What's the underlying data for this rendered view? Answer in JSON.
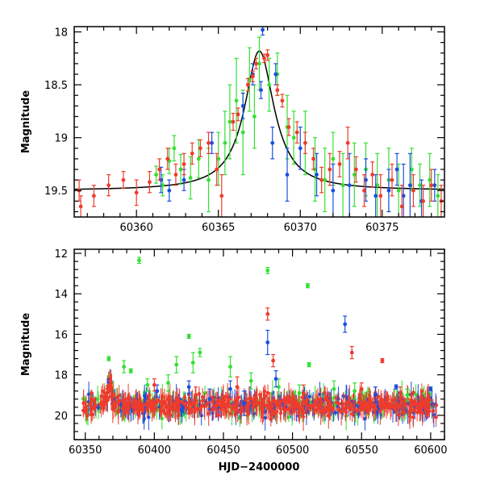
{
  "colors": {
    "green": "#33e033",
    "blue": "#1a4fe0",
    "red": "#ef3b2c",
    "model": "#000000"
  },
  "chart_data": [
    {
      "type": "scatter",
      "title": "",
      "xlabel": "",
      "ylabel": "Magnitude",
      "xlim": [
        60356.2,
        60378.8
      ],
      "ylim": [
        19.75,
        17.95
      ],
      "y_inverted": true,
      "xticks": [
        60360,
        60365,
        60370,
        60375
      ],
      "yticks": [
        18,
        18.5,
        19,
        19.5
      ],
      "ytick_labels": [
        "18",
        "18.5",
        "19",
        "19.5"
      ],
      "model_curve": {
        "peak_x": 60367.5,
        "peak_mag": 18.18,
        "base_mag": 19.5,
        "width_days": 1.1
      },
      "series": [
        {
          "color_key": "green",
          "points": [
            [
              60361.2,
              19.35,
              0.08
            ],
            [
              60361.6,
              19.45,
              0.1
            ],
            [
              60362.0,
              19.22,
              0.12
            ],
            [
              60362.3,
              19.1,
              0.12
            ],
            [
              60362.7,
              19.3,
              0.14
            ],
            [
              60363.3,
              19.38,
              0.2
            ],
            [
              60363.8,
              19.2,
              0.18
            ],
            [
              60364.4,
              19.4,
              0.3
            ],
            [
              60365.0,
              19.2,
              0.25
            ],
            [
              60365.4,
              19.05,
              0.3
            ],
            [
              60365.7,
              18.85,
              0.35
            ],
            [
              60366.1,
              18.65,
              0.4
            ],
            [
              60366.5,
              18.95,
              0.4
            ],
            [
              60366.9,
              18.45,
              0.3
            ],
            [
              60367.2,
              18.8,
              0.3
            ],
            [
              60367.5,
              18.3,
              0.25
            ],
            [
              60368.1,
              18.5,
              0.25
            ],
            [
              60368.6,
              18.4,
              0.2
            ],
            [
              60369.2,
              18.9,
              0.3
            ],
            [
              60369.6,
              19.0,
              0.25
            ],
            [
              60370.3,
              19.05,
              0.3
            ],
            [
              60370.9,
              19.3,
              0.3
            ],
            [
              60371.5,
              19.4,
              0.3
            ],
            [
              60372.0,
              19.2,
              0.25
            ],
            [
              60372.6,
              19.45,
              0.3
            ],
            [
              60373.3,
              19.35,
              0.3
            ],
            [
              60374.0,
              19.3,
              0.25
            ],
            [
              60374.7,
              19.45,
              0.3
            ],
            [
              60375.4,
              19.4,
              0.3
            ],
            [
              60376.0,
              19.5,
              0.25
            ],
            [
              60376.8,
              19.3,
              0.2
            ],
            [
              60377.3,
              19.45,
              0.2
            ],
            [
              60377.9,
              19.4,
              0.25
            ],
            [
              60378.4,
              19.55,
              0.2
            ]
          ]
        },
        {
          "color_key": "blue",
          "points": [
            [
              60361.5,
              19.4,
              0.12
            ],
            [
              60362.0,
              19.5,
              0.1
            ],
            [
              60362.9,
              19.4,
              0.1
            ],
            [
              60364.6,
              19.05,
              0.1
            ],
            [
              60366.5,
              18.7,
              0.12
            ],
            [
              60367.1,
              18.4,
              0.1
            ],
            [
              60367.6,
              18.55,
              0.08
            ],
            [
              60367.7,
              17.98,
              0.05
            ],
            [
              60368.3,
              19.05,
              0.15
            ],
            [
              60368.5,
              18.4,
              0.1
            ],
            [
              60369.2,
              19.35,
              0.25
            ],
            [
              60370.0,
              19.1,
              0.2
            ],
            [
              60371.0,
              19.35,
              0.2
            ],
            [
              60372.0,
              19.5,
              0.25
            ],
            [
              60373.0,
              19.45,
              0.3
            ],
            [
              60374.0,
              19.4,
              0.2
            ],
            [
              60374.6,
              19.55,
              0.2
            ],
            [
              60375.4,
              19.5,
              0.2
            ],
            [
              60375.9,
              19.3,
              0.15
            ],
            [
              60376.3,
              19.55,
              0.3
            ],
            [
              60376.7,
              19.45,
              0.3
            ],
            [
              60377.4,
              19.6,
              0.2
            ],
            [
              60378.2,
              19.45,
              0.15
            ]
          ]
        },
        {
          "color_key": "red",
          "points": [
            [
              60356.5,
              19.5,
              0.1
            ],
            [
              60356.6,
              19.65,
              0.1
            ],
            [
              60357.4,
              19.55,
              0.1
            ],
            [
              60358.3,
              19.45,
              0.1
            ],
            [
              60359.2,
              19.4,
              0.08
            ],
            [
              60360.0,
              19.52,
              0.12
            ],
            [
              60360.8,
              19.42,
              0.1
            ],
            [
              60361.4,
              19.3,
              0.1
            ],
            [
              60361.9,
              19.2,
              0.1
            ],
            [
              60362.4,
              19.35,
              0.1
            ],
            [
              60362.9,
              19.25,
              0.1
            ],
            [
              60363.4,
              19.15,
              0.1
            ],
            [
              60363.9,
              19.1,
              0.08
            ],
            [
              60364.4,
              19.05,
              0.1
            ],
            [
              60364.9,
              19.3,
              0.15
            ],
            [
              60365.2,
              19.55,
              0.2
            ],
            [
              60365.9,
              18.85,
              0.08
            ],
            [
              60366.2,
              18.78,
              0.06
            ],
            [
              60366.8,
              18.5,
              0.06
            ],
            [
              60367.1,
              18.42,
              0.05
            ],
            [
              60367.3,
              18.3,
              0.05
            ],
            [
              60367.8,
              18.25,
              0.04
            ],
            [
              60368.0,
              18.22,
              0.05
            ],
            [
              60368.6,
              18.55,
              0.05
            ],
            [
              60368.9,
              18.65,
              0.06
            ],
            [
              60369.3,
              18.9,
              0.08
            ],
            [
              60369.8,
              18.95,
              0.1
            ],
            [
              60370.3,
              19.05,
              0.1
            ],
            [
              60370.8,
              19.2,
              0.1
            ],
            [
              60371.3,
              19.4,
              0.12
            ],
            [
              60371.8,
              19.3,
              0.15
            ],
            [
              60372.4,
              19.25,
              0.12
            ],
            [
              60372.9,
              19.05,
              0.15
            ],
            [
              60373.4,
              19.3,
              0.12
            ],
            [
              60373.9,
              19.5,
              0.15
            ],
            [
              60374.4,
              19.35,
              0.12
            ],
            [
              60374.9,
              19.55,
              0.2
            ],
            [
              60375.6,
              19.4,
              0.15
            ],
            [
              60376.2,
              19.65,
              0.2
            ],
            [
              60376.9,
              19.5,
              0.15
            ],
            [
              60377.5,
              19.6,
              0.15
            ],
            [
              60378.0,
              19.45,
              0.15
            ],
            [
              60378.6,
              19.6,
              0.15
            ]
          ]
        }
      ]
    },
    {
      "type": "scatter",
      "title": "",
      "xlabel": "HJD−2400000",
      "ylabel": "Magnitude",
      "xlim": [
        60342,
        60610
      ],
      "ylim": [
        21.2,
        11.8
      ],
      "y_inverted": true,
      "xticks": [
        60350,
        60400,
        60450,
        60500,
        60550,
        60600
      ],
      "yticks": [
        12,
        14,
        16,
        18,
        20
      ],
      "ytick_labels": [
        "12",
        "14",
        "16",
        "18",
        "20"
      ],
      "baseline": {
        "x_start": 60348,
        "x_end": 60605,
        "mag": 19.5
      },
      "series": [
        {
          "color_key": "green",
          "points": [
            [
              60367,
              17.2,
              0.1
            ],
            [
              60378,
              17.6,
              0.3
            ],
            [
              60389,
              12.35,
              0.15
            ],
            [
              60383,
              17.8,
              0.1
            ],
            [
              60395,
              18.5,
              0.3
            ],
            [
              60410,
              18.4,
              0.4
            ],
            [
              60416,
              17.5,
              0.4
            ],
            [
              60425,
              16.1,
              0.1
            ],
            [
              60428,
              17.4,
              0.5
            ],
            [
              60433,
              16.9,
              0.2
            ],
            [
              60455,
              17.6,
              0.5
            ],
            [
              60470,
              18.3,
              0.4
            ],
            [
              60482,
              12.85,
              0.15
            ],
            [
              60490,
              18.6,
              0.4
            ],
            [
              60505,
              18.9,
              0.4
            ],
            [
              60511,
              13.6,
              0.1
            ],
            [
              60512,
              17.5,
              0.1
            ],
            [
              60530,
              18.7,
              0.4
            ],
            [
              60545,
              18.8,
              0.4
            ],
            [
              60583,
              19.0,
              0.3
            ]
          ]
        },
        {
          "color_key": "blue",
          "points": [
            [
              60367,
              18.3,
              0.1
            ],
            [
              60402,
              18.8,
              0.3
            ],
            [
              60425,
              18.6,
              0.3
            ],
            [
              60440,
              19.2,
              0.5
            ],
            [
              60455,
              18.7,
              0.4
            ],
            [
              60465,
              19.4,
              0.6
            ],
            [
              60482,
              16.4,
              0.6
            ],
            [
              60488,
              18.2,
              0.4
            ],
            [
              60538,
              15.5,
              0.4
            ],
            [
              60560,
              19.0,
              0.4
            ],
            [
              60575,
              18.6,
              0.1
            ],
            [
              60600,
              18.7,
              0.1
            ]
          ]
        },
        {
          "color_key": "red",
          "points": [
            [
              60368,
              18.3,
              0.15
            ],
            [
              60400,
              18.5,
              0.3
            ],
            [
              60430,
              19.0,
              0.4
            ],
            [
              60460,
              18.6,
              0.5
            ],
            [
              60482,
              15.0,
              0.3
            ],
            [
              60486,
              17.3,
              0.3
            ],
            [
              60508,
              18.9,
              0.4
            ],
            [
              60543,
              16.9,
              0.3
            ],
            [
              60550,
              18.7,
              0.3
            ],
            [
              60565,
              17.3,
              0.1
            ],
            [
              60578,
              18.9,
              0.3
            ]
          ]
        }
      ]
    }
  ]
}
